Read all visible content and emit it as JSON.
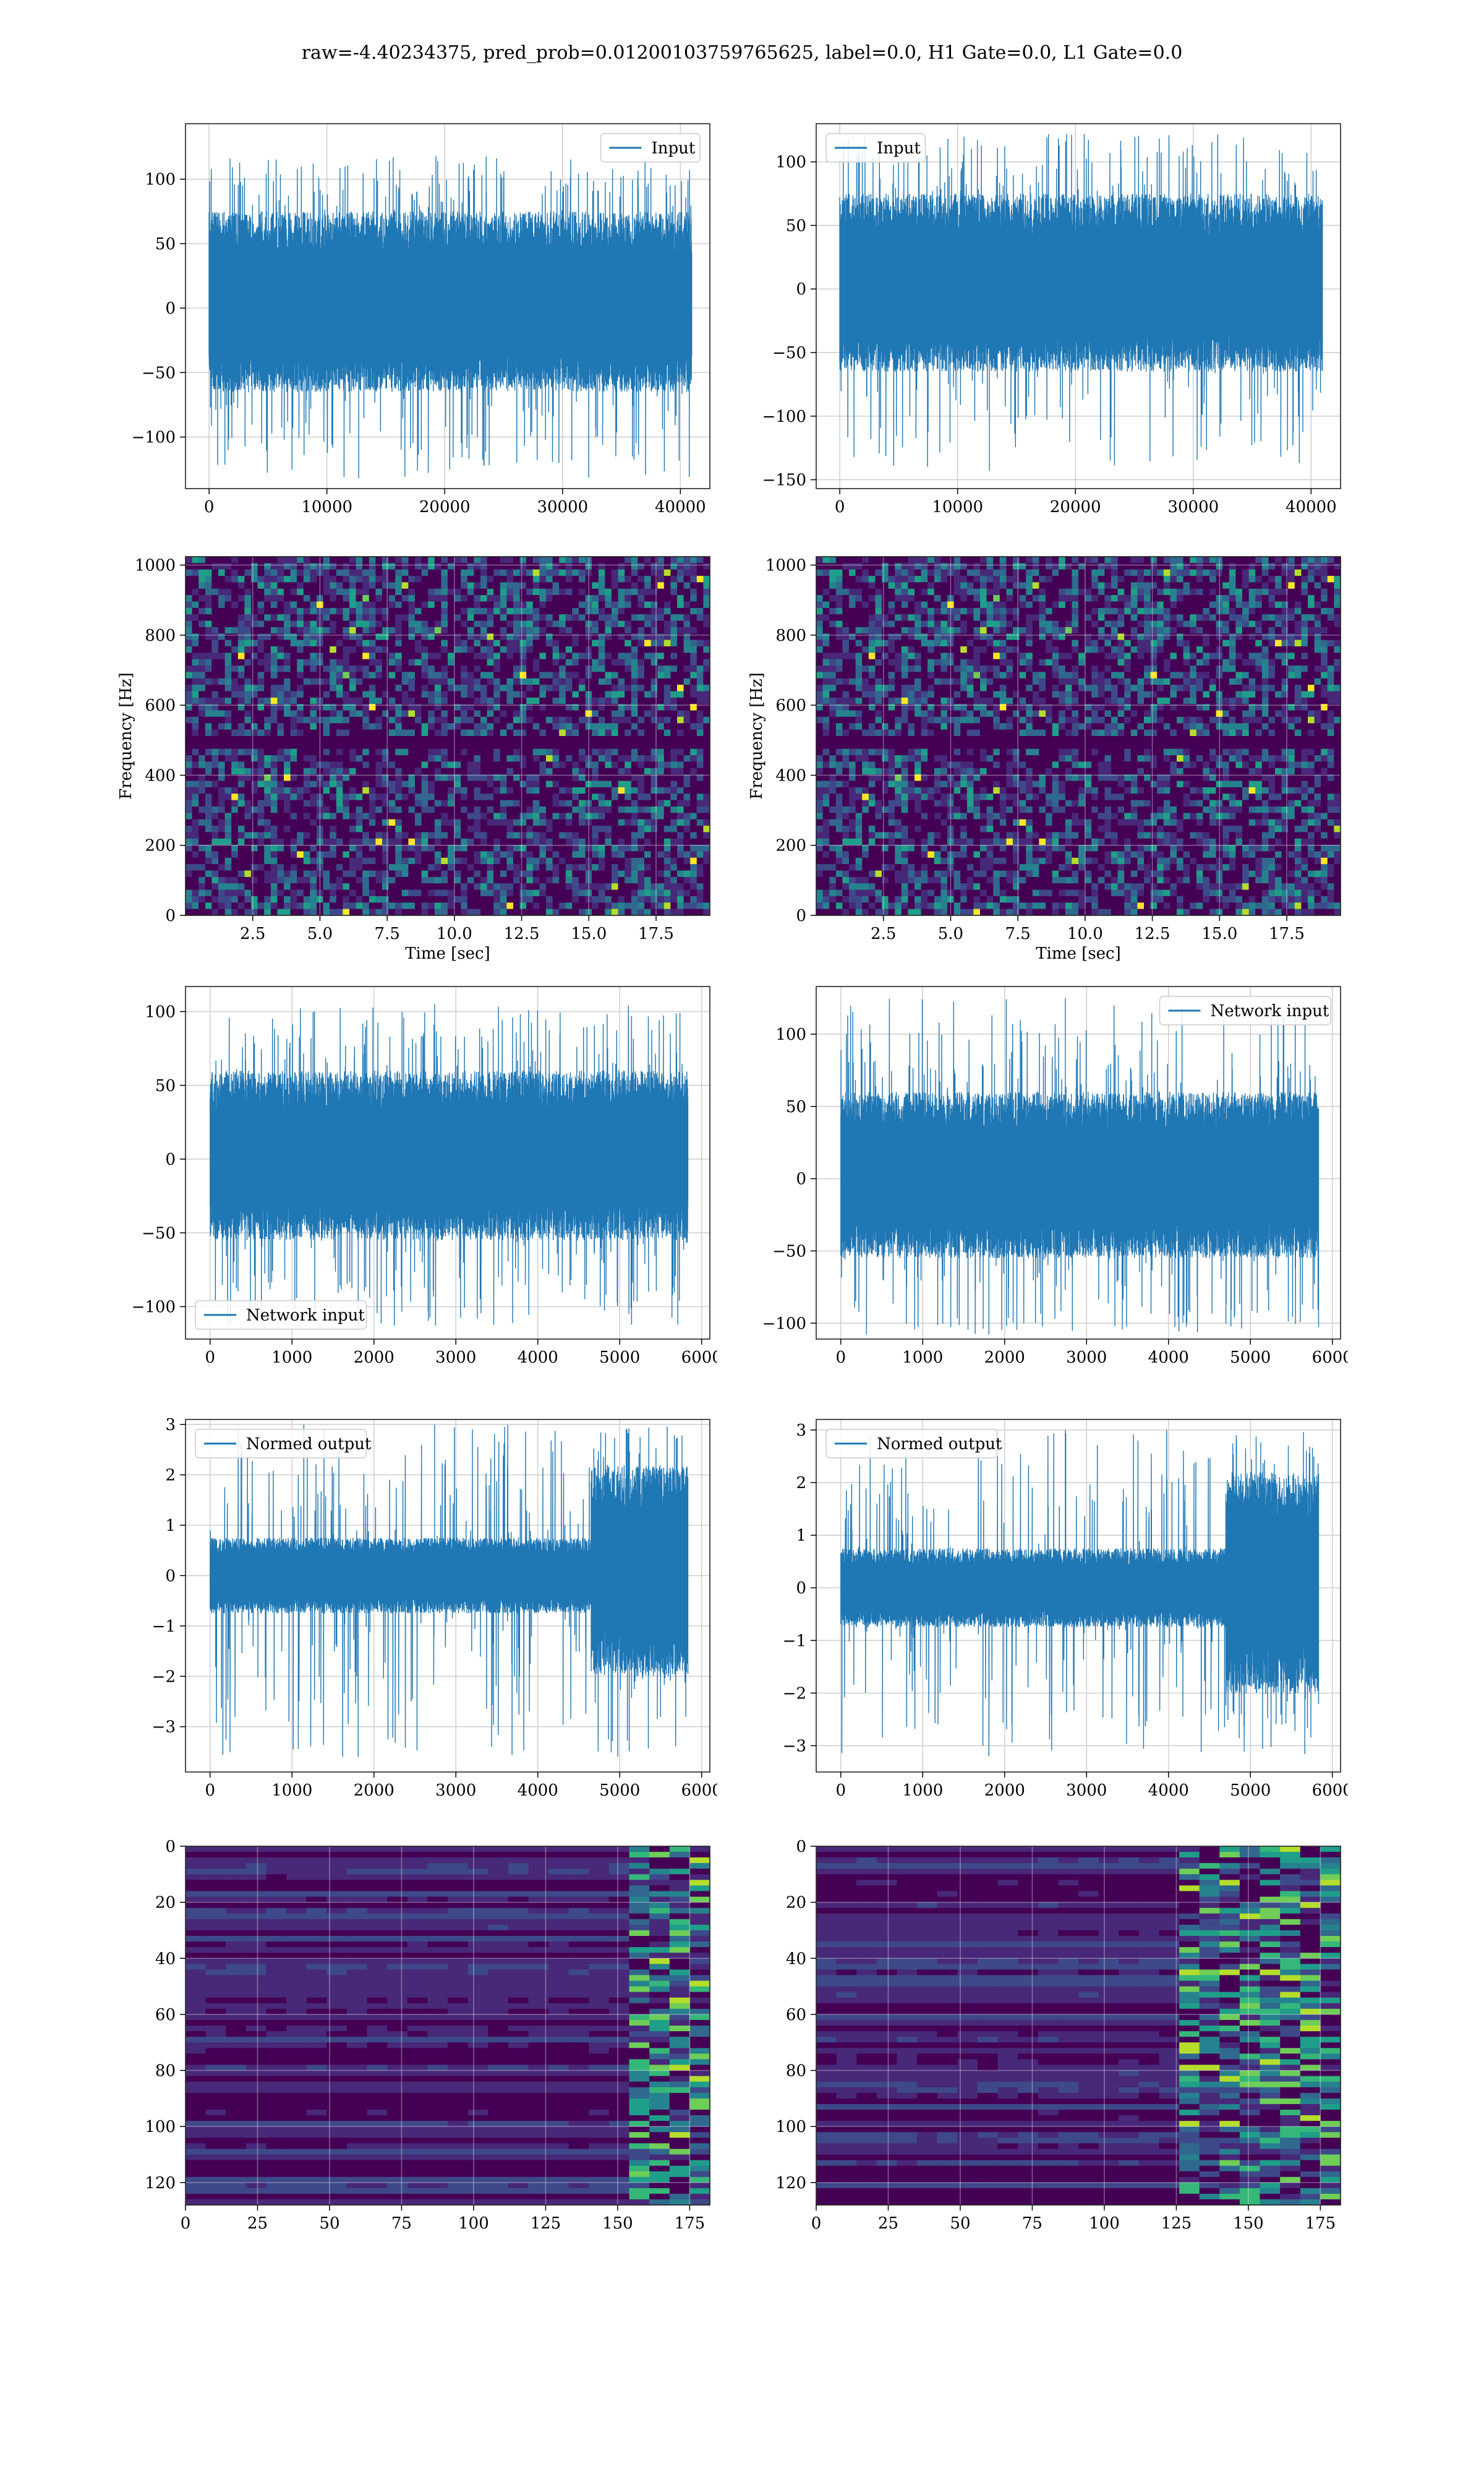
{
  "figure": {
    "title": "raw=-4.40234375, pred_prob=0.01200103759765625, label=0.0, H1 Gate=0.0, L1 Gate=0.0",
    "colors": {
      "line": "#1f77b4",
      "grid": "#d0d0d0",
      "viridis_dark": "#440154"
    }
  },
  "chart_data": [
    {
      "id": "h1-input",
      "type": "line",
      "title": "",
      "xlabel": "",
      "ylabel": "",
      "xlim": [
        -2000,
        42500
      ],
      "ylim": [
        -140,
        143
      ],
      "xticks": [
        0,
        10000,
        20000,
        30000,
        40000
      ],
      "yticks": [
        -100,
        -50,
        0,
        50,
        100
      ],
      "grid": true,
      "legend": "top-right",
      "series": [
        {
          "name": "Input",
          "n_samples": 40960,
          "x_range": [
            0,
            40960
          ],
          "envelope_typical": [
            -65,
            75
          ],
          "peak_max": 118,
          "peak_min": -132
        }
      ]
    },
    {
      "id": "l1-input",
      "type": "line",
      "title": "",
      "xlabel": "",
      "ylabel": "",
      "xlim": [
        -2000,
        42500
      ],
      "ylim": [
        -157,
        130
      ],
      "xticks": [
        0,
        10000,
        20000,
        30000,
        40000
      ],
      "yticks": [
        -150,
        -100,
        -50,
        0,
        50,
        100
      ],
      "grid": true,
      "legend": "top-left",
      "series": [
        {
          "name": "Input",
          "n_samples": 40960,
          "x_range": [
            0,
            40960
          ],
          "envelope_typical": [
            -65,
            75
          ],
          "peak_max": 122,
          "peak_min": -143
        }
      ]
    },
    {
      "id": "h1-spectrogram",
      "type": "heatmap",
      "title": "",
      "xlabel": "Time [sec]",
      "ylabel": "Frequency [Hz]",
      "xlim": [
        0,
        19.5
      ],
      "ylim": [
        0,
        1024
      ],
      "xticks": [
        2.5,
        5.0,
        7.5,
        10.0,
        12.5,
        15.0,
        17.5
      ],
      "yticks": [
        0,
        200,
        400,
        600,
        800,
        1000
      ],
      "grid": true,
      "colormap": "viridis",
      "dark_band_hz": [
        480,
        520
      ]
    },
    {
      "id": "l1-spectrogram",
      "type": "heatmap",
      "title": "",
      "xlabel": "Time [sec]",
      "ylabel": "Frequency [Hz]",
      "xlim": [
        0,
        19.5
      ],
      "ylim": [
        0,
        1024
      ],
      "xticks": [
        2.5,
        5.0,
        7.5,
        10.0,
        12.5,
        15.0,
        17.5
      ],
      "yticks": [
        0,
        200,
        400,
        600,
        800,
        1000
      ],
      "grid": true,
      "colormap": "viridis",
      "dark_band_hz": [
        480,
        520
      ]
    },
    {
      "id": "h1-network-input",
      "type": "line",
      "title": "",
      "xlabel": "",
      "ylabel": "",
      "xlim": [
        -300,
        6100
      ],
      "ylim": [
        -122,
        117
      ],
      "xticks": [
        0,
        1000,
        2000,
        3000,
        4000,
        5000,
        6000
      ],
      "yticks": [
        -100,
        -50,
        0,
        50,
        100
      ],
      "grid": true,
      "legend": "bottom-left",
      "series": [
        {
          "name": "Network input",
          "n_samples": 5832,
          "x_range": [
            0,
            5832
          ],
          "envelope_typical": [
            -55,
            60
          ],
          "peak_max": 105,
          "peak_min": -115
        }
      ]
    },
    {
      "id": "l1-network-input",
      "type": "line",
      "title": "",
      "xlabel": "",
      "ylabel": "",
      "xlim": [
        -300,
        6100
      ],
      "ylim": [
        -111,
        133
      ],
      "xticks": [
        0,
        1000,
        2000,
        3000,
        4000,
        5000,
        6000
      ],
      "yticks": [
        -100,
        -50,
        0,
        50,
        100
      ],
      "grid": true,
      "legend": "top-right",
      "series": [
        {
          "name": "Network input",
          "n_samples": 5832,
          "x_range": [
            0,
            5832
          ],
          "envelope_typical": [
            -55,
            60
          ],
          "peak_max": 125,
          "peak_min": -108
        }
      ]
    },
    {
      "id": "h1-normed-output",
      "type": "line",
      "title": "",
      "xlabel": "",
      "ylabel": "",
      "xlim": [
        -300,
        6100
      ],
      "ylim": [
        -3.9,
        3.1
      ],
      "xticks": [
        0,
        1000,
        2000,
        3000,
        4000,
        5000,
        6000
      ],
      "yticks": [
        -3,
        -2,
        -1,
        0,
        1,
        2,
        3
      ],
      "grid": true,
      "legend": "top-left",
      "series": [
        {
          "name": "Normed output",
          "n_samples": 5832,
          "x_range": [
            0,
            5832
          ],
          "envelope_typical": [
            -0.75,
            0.75
          ],
          "burst_from_x": 4650,
          "burst_envelope": [
            -2.0,
            2.2
          ],
          "peak_max": 3.0,
          "peak_min": -3.6
        }
      ]
    },
    {
      "id": "l1-normed-output",
      "type": "line",
      "title": "",
      "xlabel": "",
      "ylabel": "",
      "xlim": [
        -300,
        6100
      ],
      "ylim": [
        -3.5,
        3.2
      ],
      "xticks": [
        0,
        1000,
        2000,
        3000,
        4000,
        5000,
        6000
      ],
      "yticks": [
        -3,
        -2,
        -1,
        0,
        1,
        2,
        3
      ],
      "grid": true,
      "legend": "top-left",
      "series": [
        {
          "name": "Normed output",
          "n_samples": 5832,
          "x_range": [
            0,
            5832
          ],
          "envelope_typical": [
            -0.75,
            0.75
          ],
          "burst_from_x": 4700,
          "burst_envelope": [
            -2.0,
            2.2
          ],
          "peak_max": 3.0,
          "peak_min": -3.2
        }
      ]
    },
    {
      "id": "h1-feature-map",
      "type": "heatmap",
      "title": "",
      "xlabel": "",
      "ylabel": "",
      "xlim": [
        0,
        182
      ],
      "ylim": [
        128,
        0
      ],
      "xticks": [
        0,
        25,
        50,
        75,
        100,
        125,
        150,
        175
      ],
      "yticks": [
        0,
        20,
        40,
        60,
        80,
        100,
        120
      ],
      "grid": true,
      "colormap": "viridis",
      "active_from_col": 148
    },
    {
      "id": "l1-feature-map",
      "type": "heatmap",
      "title": "",
      "xlabel": "",
      "ylabel": "",
      "xlim": [
        0,
        182
      ],
      "ylim": [
        128,
        0
      ],
      "xticks": [
        0,
        25,
        50,
        75,
        100,
        125,
        150,
        175
      ],
      "yticks": [
        0,
        20,
        40,
        60,
        80,
        100,
        120
      ],
      "grid": true,
      "colormap": "viridis",
      "active_from_col": 125
    }
  ]
}
